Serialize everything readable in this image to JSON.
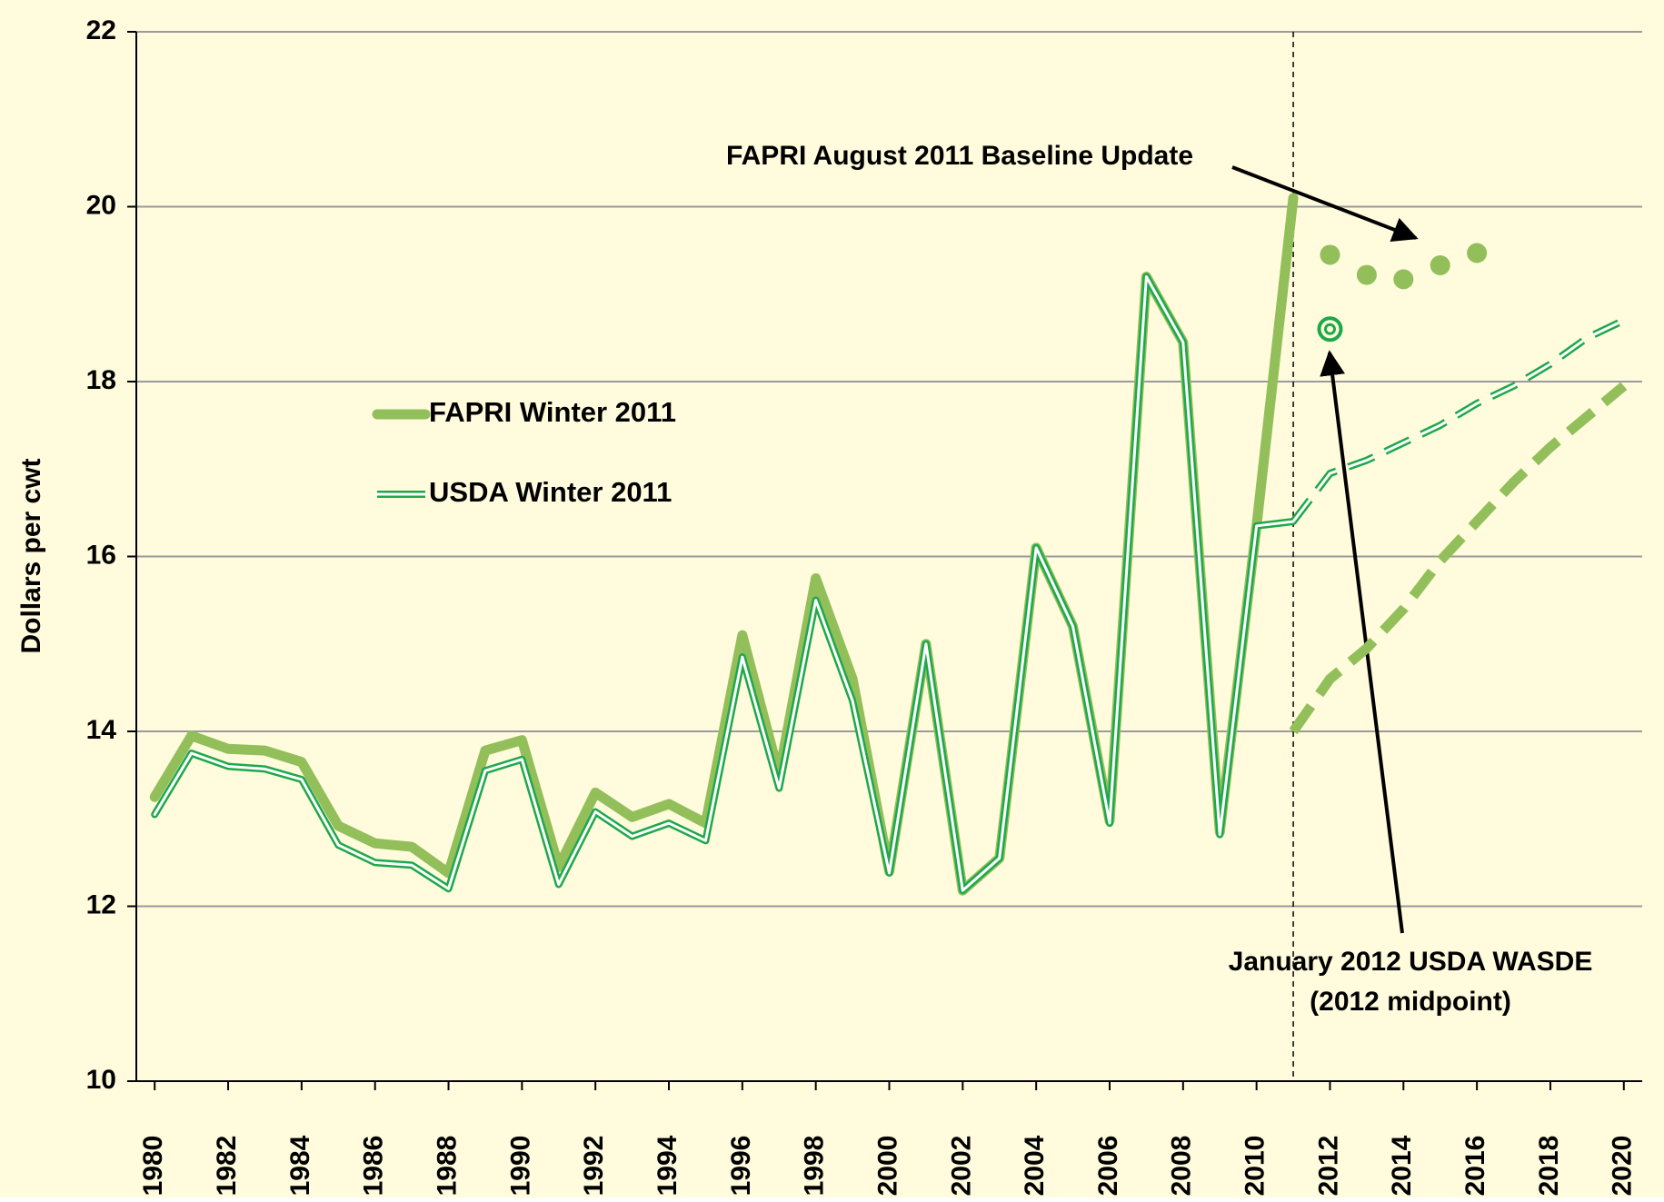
{
  "chart_data": {
    "type": "line",
    "y_label": "Dollars per cwt",
    "x": [
      1980,
      1981,
      1982,
      1983,
      1984,
      1985,
      1986,
      1987,
      1988,
      1989,
      1990,
      1991,
      1992,
      1993,
      1994,
      1995,
      1996,
      1997,
      1998,
      1999,
      2000,
      2001,
      2002,
      2003,
      2004,
      2005,
      2006,
      2007,
      2008,
      2009,
      2010,
      2011,
      2012,
      2013,
      2014,
      2015,
      2016,
      2017,
      2018,
      2019,
      2020
    ],
    "xlim": [
      1979.5,
      2020.5
    ],
    "xticks": [
      1980,
      1982,
      1984,
      1986,
      1988,
      1990,
      1992,
      1994,
      1996,
      1998,
      2000,
      2002,
      2004,
      2006,
      2008,
      2010,
      2012,
      2014,
      2016,
      2018,
      2020
    ],
    "ylim": [
      10,
      22
    ],
    "yticks": [
      10,
      12,
      14,
      16,
      18,
      20,
      22
    ],
    "grid": true,
    "divider_x": 2011,
    "series": [
      {
        "name": "FAPRI Winter 2011",
        "color": "#92bf5a",
        "style": "thick",
        "values": [
          13.25,
          13.95,
          13.8,
          13.78,
          13.65,
          12.92,
          12.72,
          12.68,
          12.38,
          13.78,
          13.9,
          12.45,
          13.3,
          13.02,
          13.17,
          12.95,
          15.1,
          13.5,
          15.75,
          14.6,
          12.4,
          15.0,
          12.18,
          12.55,
          16.1,
          15.2,
          12.98,
          19.2,
          18.45,
          12.85,
          16.35,
          20.1,
          null,
          null,
          null,
          null,
          null,
          null,
          null,
          null,
          null
        ]
      },
      {
        "name": "USDA Winter 2011",
        "color": "#1ea84c",
        "style": "double",
        "values": [
          13.05,
          13.75,
          13.6,
          13.57,
          13.45,
          12.7,
          12.5,
          12.47,
          12.2,
          13.55,
          13.68,
          12.25,
          13.08,
          12.8,
          12.95,
          12.75,
          14.85,
          13.35,
          15.5,
          14.35,
          12.38,
          15.0,
          12.18,
          12.55,
          16.1,
          15.2,
          12.95,
          19.2,
          18.45,
          12.82,
          16.35,
          16.4,
          null,
          null,
          null,
          null,
          null,
          null,
          null,
          null,
          null
        ]
      },
      {
        "color": "#92bf5a",
        "style": "dashed",
        "values": [
          null,
          null,
          null,
          null,
          null,
          null,
          null,
          null,
          null,
          null,
          null,
          null,
          null,
          null,
          null,
          null,
          null,
          null,
          null,
          null,
          null,
          null,
          null,
          null,
          null,
          null,
          null,
          null,
          null,
          null,
          null,
          14.0,
          14.6,
          14.95,
          15.4,
          15.95,
          16.4,
          16.85,
          17.25,
          17.6,
          17.95
        ]
      },
      {
        "color": "#1ea84c",
        "style": "double-dashed",
        "values": [
          null,
          null,
          null,
          null,
          null,
          null,
          null,
          null,
          null,
          null,
          null,
          null,
          null,
          null,
          null,
          null,
          null,
          null,
          null,
          null,
          null,
          null,
          null,
          null,
          null,
          null,
          null,
          null,
          null,
          null,
          null,
          16.4,
          16.95,
          17.1,
          17.3,
          17.5,
          17.75,
          17.95,
          18.2,
          18.5,
          18.7
        ]
      },
      {
        "color": "#92bf5a",
        "style": "dots",
        "values": [
          null,
          null,
          null,
          null,
          null,
          null,
          null,
          null,
          null,
          null,
          null,
          null,
          null,
          null,
          null,
          null,
          null,
          null,
          null,
          null,
          null,
          null,
          null,
          null,
          null,
          null,
          null,
          null,
          null,
          null,
          null,
          null,
          19.45,
          19.22,
          19.17,
          19.33,
          19.47,
          null,
          null,
          null,
          null
        ]
      },
      {
        "color": "#1ea84c",
        "style": "ring",
        "values": [
          null,
          null,
          null,
          null,
          null,
          null,
          null,
          null,
          null,
          null,
          null,
          null,
          null,
          null,
          null,
          null,
          null,
          null,
          null,
          null,
          null,
          null,
          null,
          null,
          null,
          null,
          null,
          null,
          null,
          null,
          null,
          null,
          18.6,
          null,
          null,
          null,
          null,
          null,
          null,
          null,
          null
        ]
      }
    ],
    "annotations": [
      "FAPRI August 2011 Baseline Update",
      "January 2012 USDA WASDE",
      "(2012 midpoint)"
    ]
  }
}
